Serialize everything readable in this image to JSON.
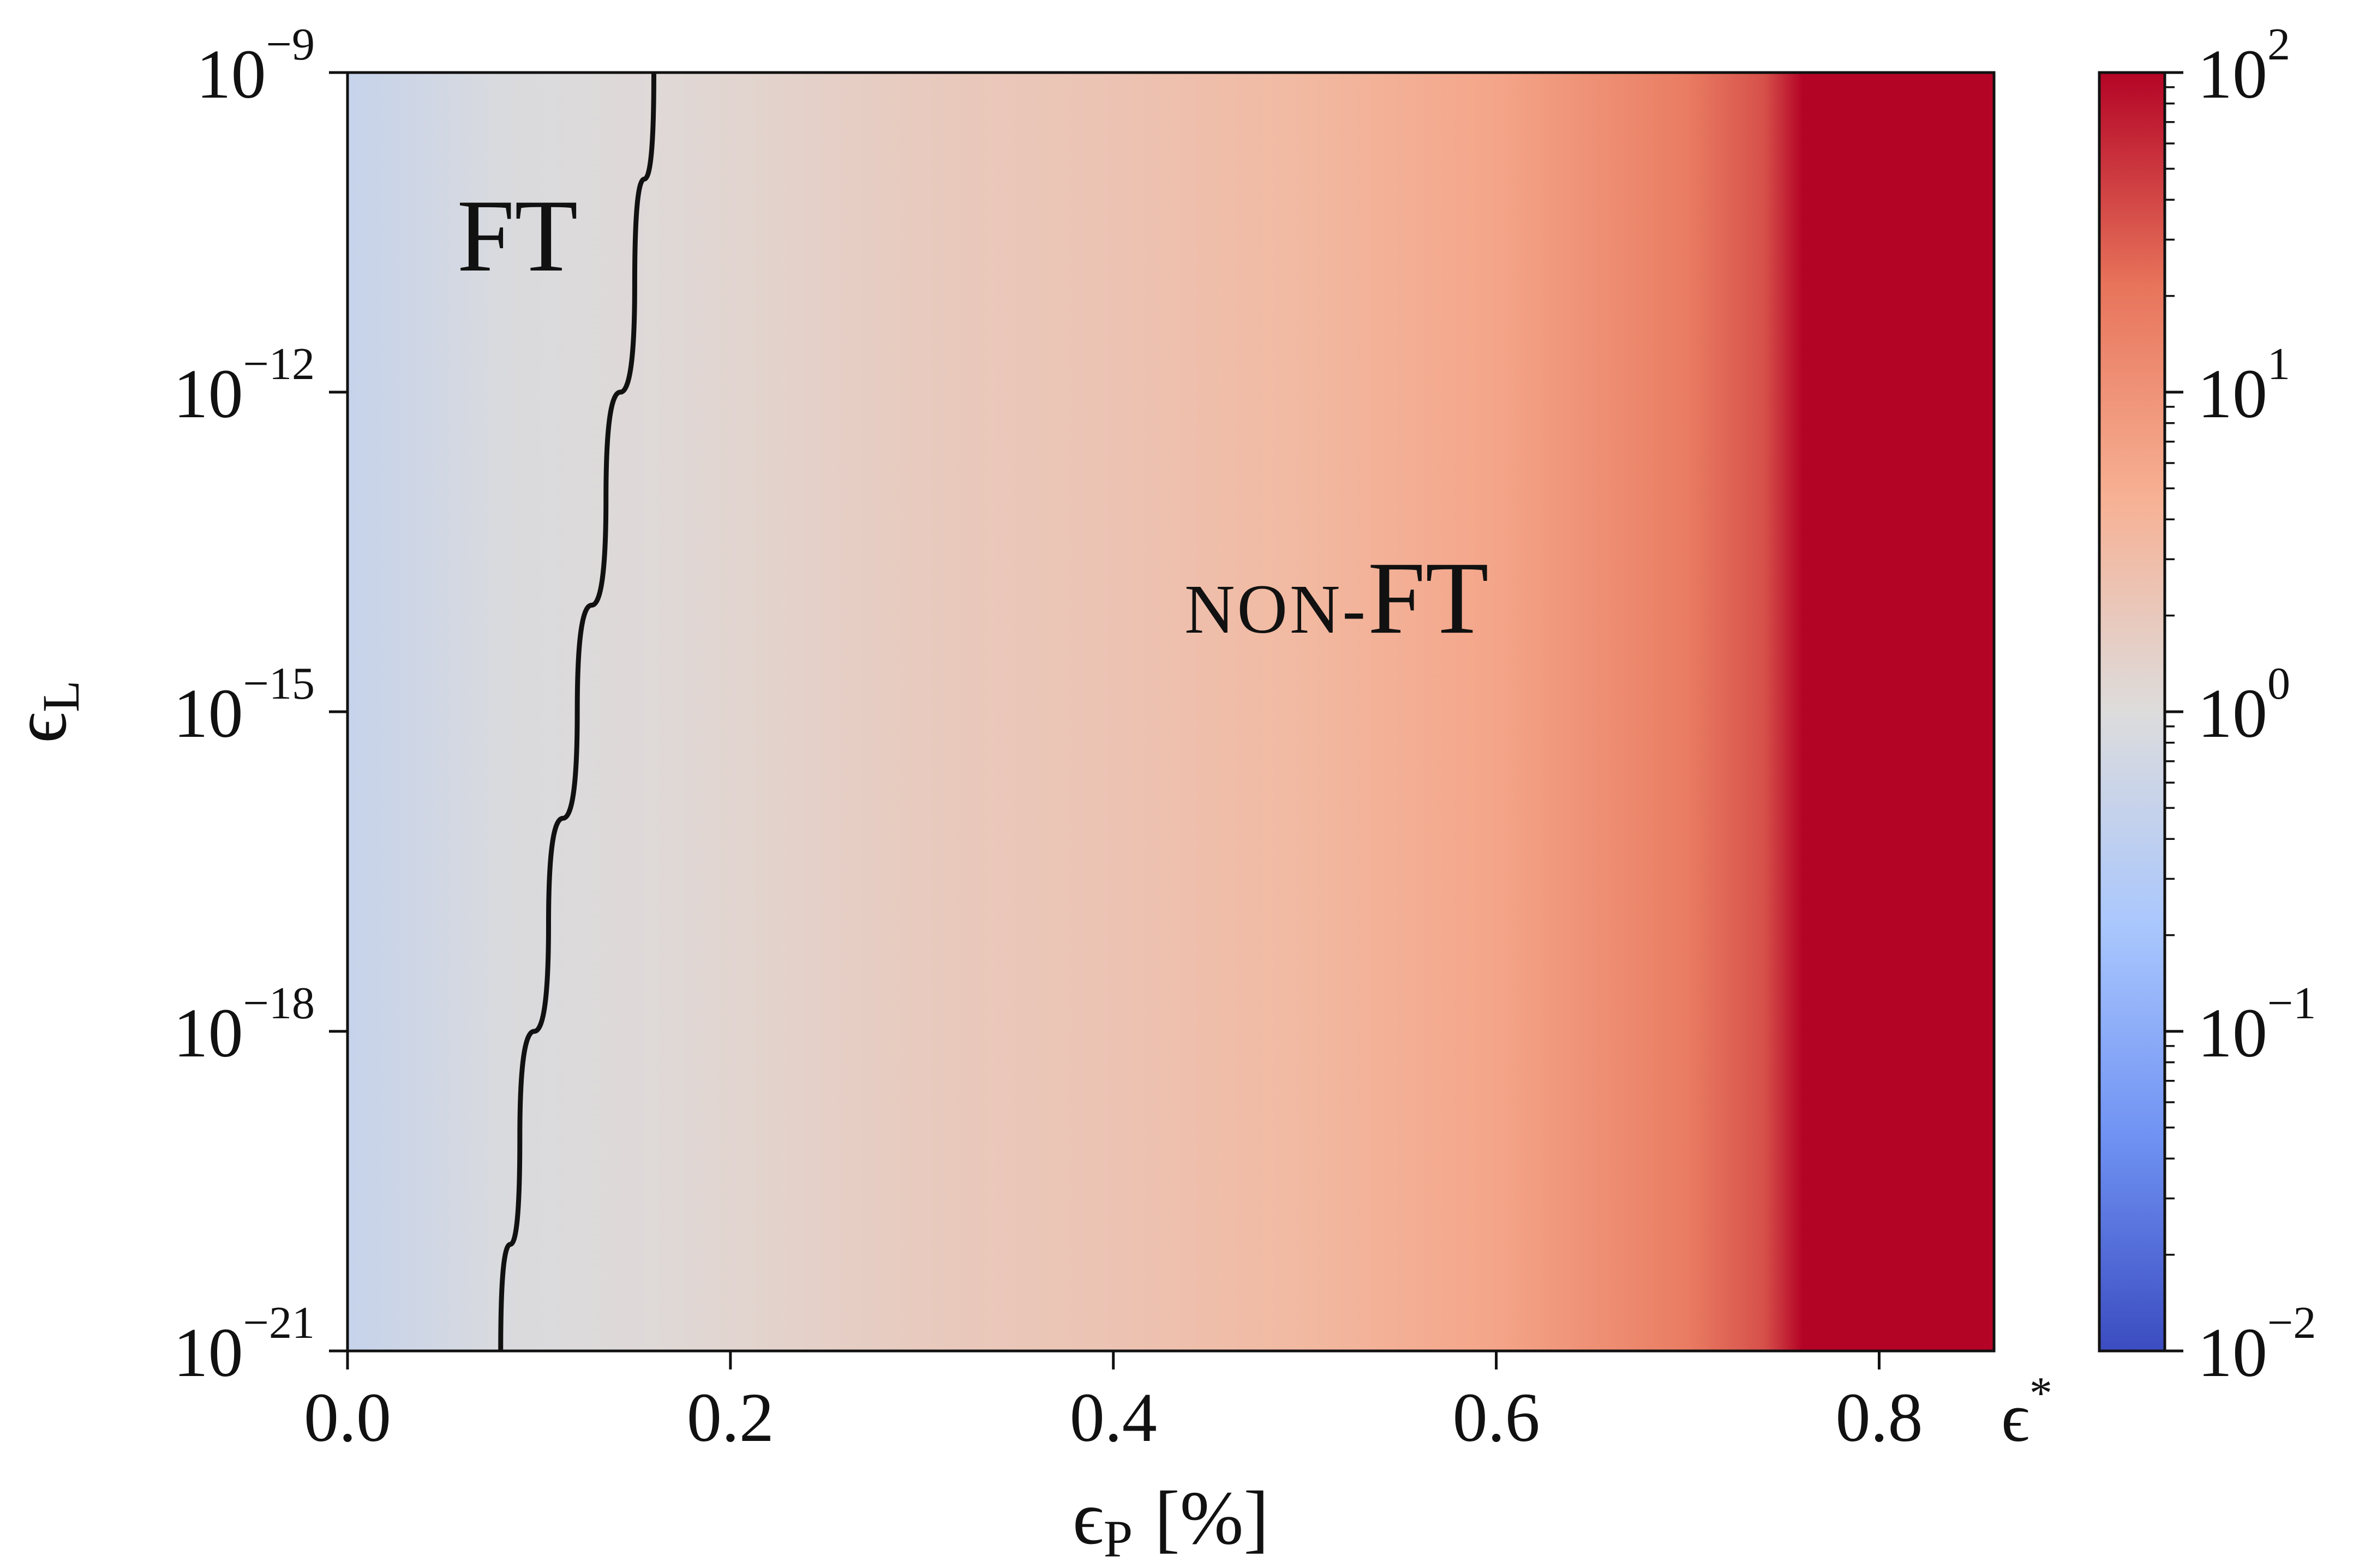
{
  "chart_data": {
    "type": "heatmap",
    "xlabel": {
      "symbol": "ϵ",
      "subscript": "P",
      "unit": "[%]"
    },
    "ylabel": {
      "symbol": "ϵ",
      "subscript": "L"
    },
    "x_ticks": [
      "0.0",
      "0.2",
      "0.4",
      "0.6",
      "0.8"
    ],
    "x_tick_values": [
      0.0,
      0.2,
      0.4,
      0.6,
      0.8
    ],
    "x_extra_tick": {
      "symbol": "ϵ",
      "superscript": "*",
      "value": 0.86
    },
    "xlim": [
      0.0,
      0.86
    ],
    "y_scale": "log",
    "y_ticks": [
      {
        "base": "10",
        "exp": "−21",
        "log10": -21
      },
      {
        "base": "10",
        "exp": "−18",
        "log10": -18
      },
      {
        "base": "10",
        "exp": "−15",
        "log10": -15
      },
      {
        "base": "10",
        "exp": "−12",
        "log10": -12
      },
      {
        "base": "10",
        "exp": "−9",
        "log10": -9
      }
    ],
    "ylim_log10": [
      -21,
      -9
    ],
    "colorbar": {
      "scale": "log",
      "cmap": "coolwarm",
      "range_log10": [
        -2,
        2
      ],
      "ticks": [
        {
          "base": "10",
          "exp": "−2",
          "log10": -2
        },
        {
          "base": "10",
          "exp": "−1",
          "log10": -1
        },
        {
          "base": "10",
          "exp": "0",
          "log10": 0
        },
        {
          "base": "10",
          "exp": "1",
          "log10": 1
        },
        {
          "base": "10",
          "exp": "2",
          "log10": 2
        }
      ],
      "colors": [
        "#3b4cc0",
        "#6f92f3",
        "#aac7fd",
        "#dddcdc",
        "#f7b194",
        "#e7745b",
        "#b40426"
      ]
    },
    "value_profile_vs_x": {
      "x": [
        0.0,
        0.08,
        0.16,
        0.3,
        0.4,
        0.5,
        0.6,
        0.7,
        0.74,
        0.76,
        0.86
      ],
      "log10_value": [
        -0.3,
        -0.05,
        0.05,
        0.28,
        0.38,
        0.55,
        0.8,
        1.25,
        1.55,
        2.0,
        2.0
      ]
    },
    "boundary_curve": {
      "x": [
        0.08,
        0.09,
        0.105,
        0.12,
        0.135,
        0.15,
        0.16
      ],
      "log10_y": [
        -21,
        -19,
        -17,
        -15,
        -13,
        -11,
        -9
      ]
    },
    "annotations": [
      {
        "text": "FT",
        "x": 0.06,
        "log10_y": -10.5
      },
      {
        "text_small": "NON-",
        "text": "FT",
        "x": 0.44,
        "log10_y": -13.9
      }
    ]
  }
}
